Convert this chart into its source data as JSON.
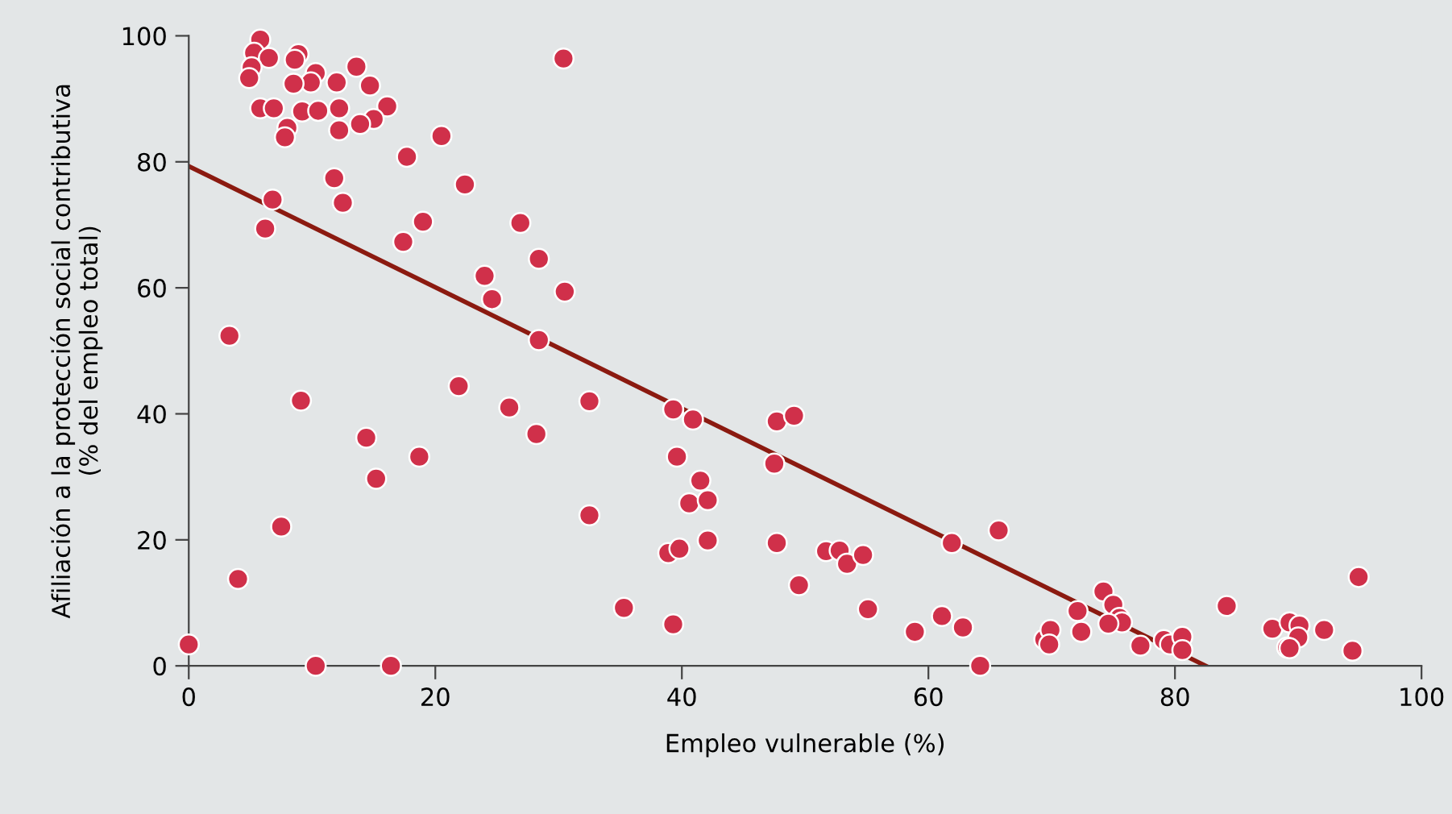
{
  "chart_data": {
    "type": "scatter",
    "xlabel": "Empleo vulnerable (%)",
    "ylabel": "Afiliación a la protección social contributiva\n(% del empleo total)",
    "xlim": [
      0,
      100
    ],
    "ylim": [
      0,
      100
    ],
    "xticks": [
      0,
      20,
      40,
      60,
      80,
      100
    ],
    "yticks": [
      0,
      20,
      40,
      60,
      80,
      100
    ],
    "grid": false,
    "legend": false,
    "marker": "circle",
    "series": [
      {
        "color": "#d0304a",
        "x": [
          5.8,
          5.3,
          6.5,
          5.1,
          4.9,
          8.9,
          8.6,
          13.6,
          30.4,
          10.3,
          9.9,
          8.5,
          12.0,
          14.7,
          5.8,
          6.9,
          9.2,
          10.5,
          12.2,
          16.1,
          15.0,
          13.9,
          12.2,
          8.0,
          7.8,
          20.5,
          17.7,
          11.8,
          12.5,
          22.4,
          6.8,
          6.2,
          19.0,
          17.4,
          26.9,
          28.4,
          30.5,
          24.0,
          24.6,
          28.4,
          3.3,
          9.1,
          21.9,
          26.0,
          28.2,
          32.5,
          14.4,
          18.7,
          15.2,
          7.5,
          4.0,
          32.5,
          0,
          10.3,
          16.4,
          39.3,
          40.9,
          47.7,
          49.1,
          39.6,
          47.5,
          41.5,
          40.6,
          42.1,
          38.9,
          39.8,
          42.1,
          47.7,
          51.7,
          52.8,
          53.4,
          54.7,
          49.5,
          61.9,
          65.7,
          35.3,
          39.3,
          55.1,
          58.9,
          61.1,
          62.8,
          64.2,
          69.4,
          69.9,
          69.8,
          72.1,
          72.4,
          74.2,
          75.0,
          75.5,
          75.7,
          74.6,
          77.2,
          79.1,
          79.6,
          80.6,
          80.6,
          84.2,
          87.9,
          89.3,
          90.1,
          90.0,
          89.1,
          89.3,
          92.1,
          94.9,
          94.4
        ],
        "values": [
          99.4,
          97.3,
          96.5,
          95.0,
          93.3,
          97.1,
          96.2,
          95.1,
          96.4,
          94.1,
          92.6,
          92.4,
          92.6,
          92.1,
          88.5,
          88.5,
          88.0,
          88.1,
          88.5,
          88.8,
          86.8,
          86.0,
          85.0,
          85.4,
          83.9,
          84.1,
          80.8,
          77.4,
          73.5,
          76.4,
          74.0,
          69.4,
          70.5,
          67.3,
          70.3,
          64.6,
          59.4,
          61.9,
          58.2,
          51.7,
          52.4,
          42.1,
          44.4,
          41.0,
          36.8,
          42.0,
          36.2,
          33.2,
          29.7,
          22.1,
          13.8,
          23.9,
          3.4,
          0,
          0,
          40.7,
          39.1,
          38.8,
          39.7,
          33.2,
          32.1,
          29.4,
          25.8,
          26.3,
          17.9,
          18.6,
          19.9,
          19.5,
          18.2,
          18.3,
          16.2,
          17.6,
          12.8,
          19.5,
          21.5,
          9.2,
          6.6,
          9.0,
          5.4,
          7.9,
          6.1,
          0,
          4.2,
          5.7,
          3.4,
          8.7,
          5.4,
          11.8,
          9.7,
          7.6,
          6.9,
          6.7,
          3.2,
          4.1,
          3.4,
          4.6,
          2.5,
          9.5,
          5.9,
          6.9,
          6.4,
          4.5,
          2.9,
          2.8,
          5.7,
          14.1,
          2.4
        ]
      },
      {
        "type": "line",
        "color": "#8b1a10",
        "marker": "none",
        "line_style": "solid",
        "x": [
          0,
          82.5
        ],
        "values": [
          79.3,
          0
        ]
      }
    ]
  }
}
